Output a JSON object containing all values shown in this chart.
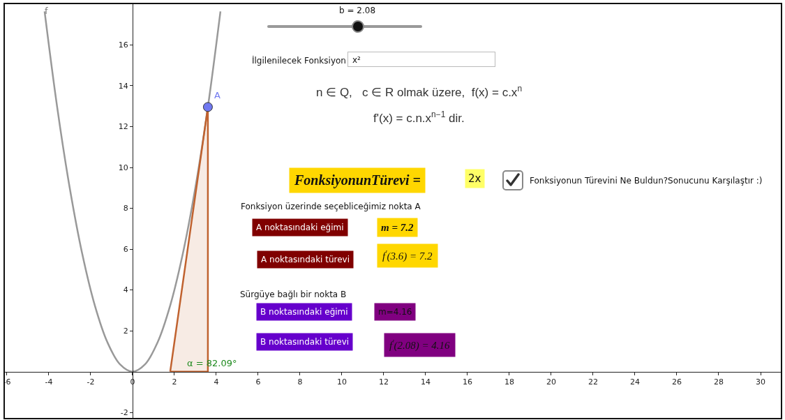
{
  "chart_data": {
    "type": "line",
    "xlim": [
      -6.13,
      31.0
    ],
    "ylim": [
      -2.3,
      18.03
    ],
    "xticks": [
      -6,
      -4,
      -2,
      0,
      2,
      4,
      6,
      8,
      10,
      12,
      14,
      16,
      18,
      20,
      22,
      24,
      26,
      28,
      30
    ],
    "yticks": [
      -2,
      2,
      4,
      6,
      8,
      10,
      12,
      14,
      16
    ],
    "grid": false,
    "legend": false,
    "series": [
      {
        "name": "f",
        "color": "#999999",
        "x": [
          -4.2,
          -3.6,
          -3,
          -2.4,
          -1.8,
          -1.2,
          -0.6,
          0,
          0.6,
          1.2,
          1.8,
          2.4,
          3,
          3.6,
          4.2
        ],
        "values": [
          17.64,
          12.96,
          9,
          5.76,
          3.24,
          1.44,
          0.36,
          0,
          0.36,
          1.44,
          3.24,
          5.76,
          9,
          12.96,
          17.64
        ]
      },
      {
        "type": "area",
        "color": "#c0622f",
        "x": [
          1.8,
          3.6,
          3.6,
          1.8
        ],
        "values": [
          0,
          12.96,
          0,
          0
        ]
      },
      {
        "name": "A",
        "type": "scatter",
        "color": "#7078f0",
        "x": [
          3.6
        ],
        "values": [
          12.96
        ]
      }
    ],
    "annotations": [
      "b = 2.08",
      "İlgilenilecek Fonksiyon",
      "x²",
      "n ∈ Q,   c ∈ R olmak üzere,  f(x) = c.x$^{n}$",
      "f'(x) = c.n.x$^{n−1}$ dir.",
      "FonksiyonunTürevi =",
      "2x",
      "Fonksiyonun Türevini Ne Buldun?Sonucunu Karşılaştır :)",
      "Fonksiyon üzerinde seçebliceğimiz nokta A",
      "A noktasındaki eğimi",
      "m = 7.2",
      "A noktasındaki türevi",
      "f$^{'}$(3.6) = 7.2",
      "Sürgüye bağlı bir nokta B",
      "B noktasındaki eğimi",
      "m=4.16",
      "B noktasındaki türevi",
      "f$^{'}$(2.08) = 4.16",
      {
        "text": "α = 82.09°",
        "x": 1.8,
        "y": 0
      }
    ]
  }
}
